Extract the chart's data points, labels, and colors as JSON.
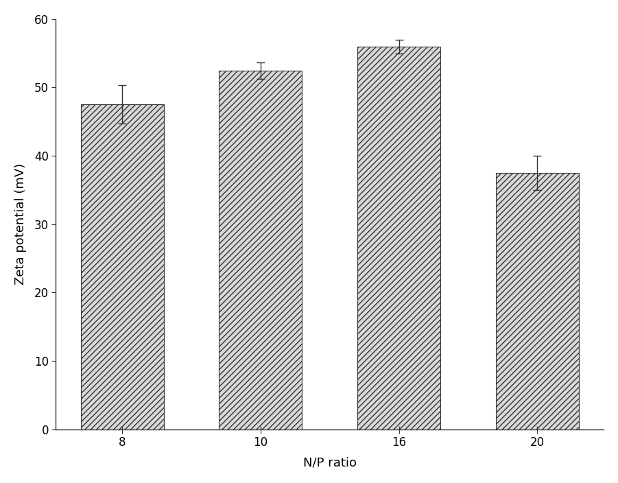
{
  "categories": [
    "8",
    "10",
    "16",
    "20"
  ],
  "values": [
    47.5,
    52.5,
    56.0,
    37.5
  ],
  "errors": [
    2.8,
    1.2,
    1.0,
    2.5
  ],
  "xlabel": "N/P ratio",
  "ylabel": "Zeta potential (mV)",
  "ylim": [
    0,
    60
  ],
  "yticks": [
    0,
    10,
    20,
    30,
    40,
    50,
    60
  ],
  "bar_color": "#d8d8d8",
  "hatch": "////",
  "edge_color": "#333333",
  "background_color": "#ffffff",
  "figure_bg": "#ffffff",
  "bar_width": 0.6,
  "label_fontsize": 13,
  "tick_fontsize": 12
}
